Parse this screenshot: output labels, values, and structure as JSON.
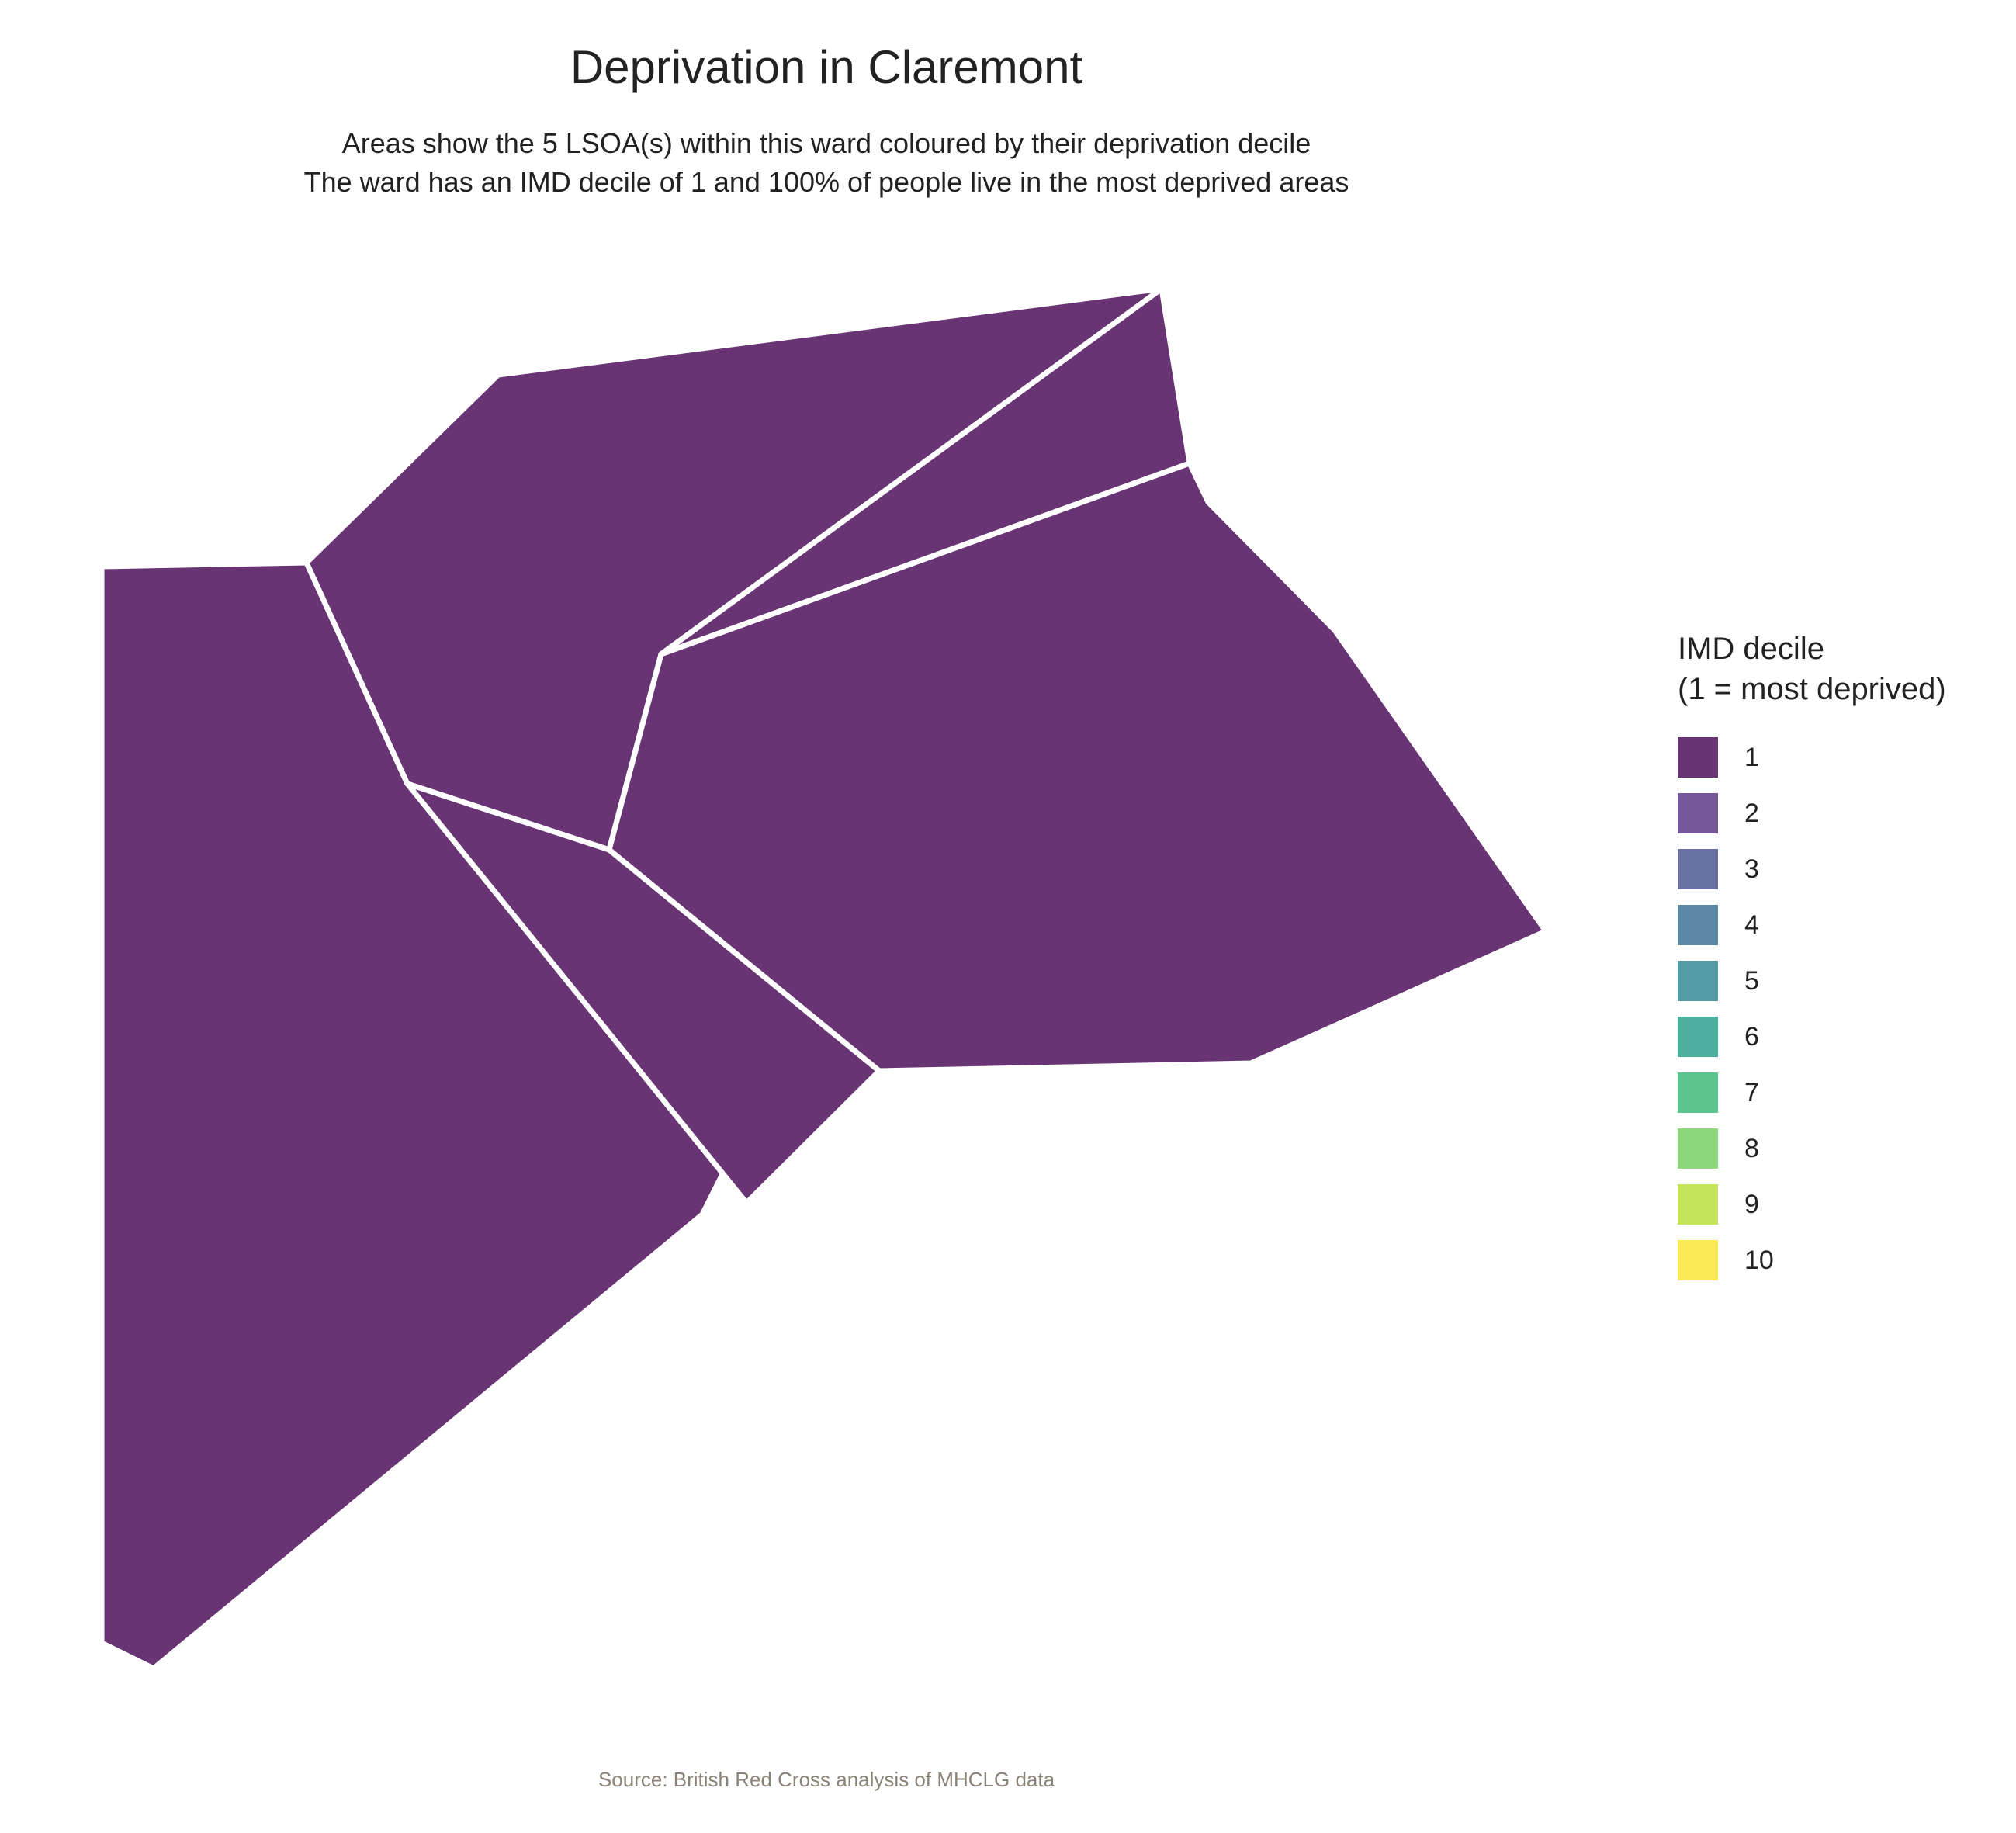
{
  "title": "Deprivation in Claremont",
  "subtitle": {
    "line1": "Areas show the 5 LSOA(s) within this ward coloured by their deprivation decile",
    "line2": "The ward has an IMD decile of 1 and 100% of people live in the most deprived areas"
  },
  "caption": "Source: British Red Cross analysis of MHCLG data",
  "legend": {
    "title_line1": "IMD decile",
    "title_line2": "(1 = most deprived)",
    "items": [
      {
        "label": "1",
        "color": "#683474"
      },
      {
        "label": "2",
        "color": "#735798"
      },
      {
        "label": "3",
        "color": "#6871a2"
      },
      {
        "label": "4",
        "color": "#5b89a5"
      },
      {
        "label": "5",
        "color": "#539ca5"
      },
      {
        "label": "6",
        "color": "#4db09e"
      },
      {
        "label": "7",
        "color": "#5cc48f"
      },
      {
        "label": "8",
        "color": "#8dd57a"
      },
      {
        "label": "9",
        "color": "#c4e55b"
      },
      {
        "label": "10",
        "color": "#fbe955"
      }
    ]
  },
  "chart_data": {
    "type": "choropleth",
    "areas": [
      {
        "decile": 1,
        "color": "#683474"
      },
      {
        "decile": 1,
        "color": "#683474"
      },
      {
        "decile": 1,
        "color": "#683474"
      },
      {
        "decile": 1,
        "color": "#683474"
      },
      {
        "decile": 1,
        "color": "#683474"
      }
    ],
    "border_color": "#ffffff"
  }
}
